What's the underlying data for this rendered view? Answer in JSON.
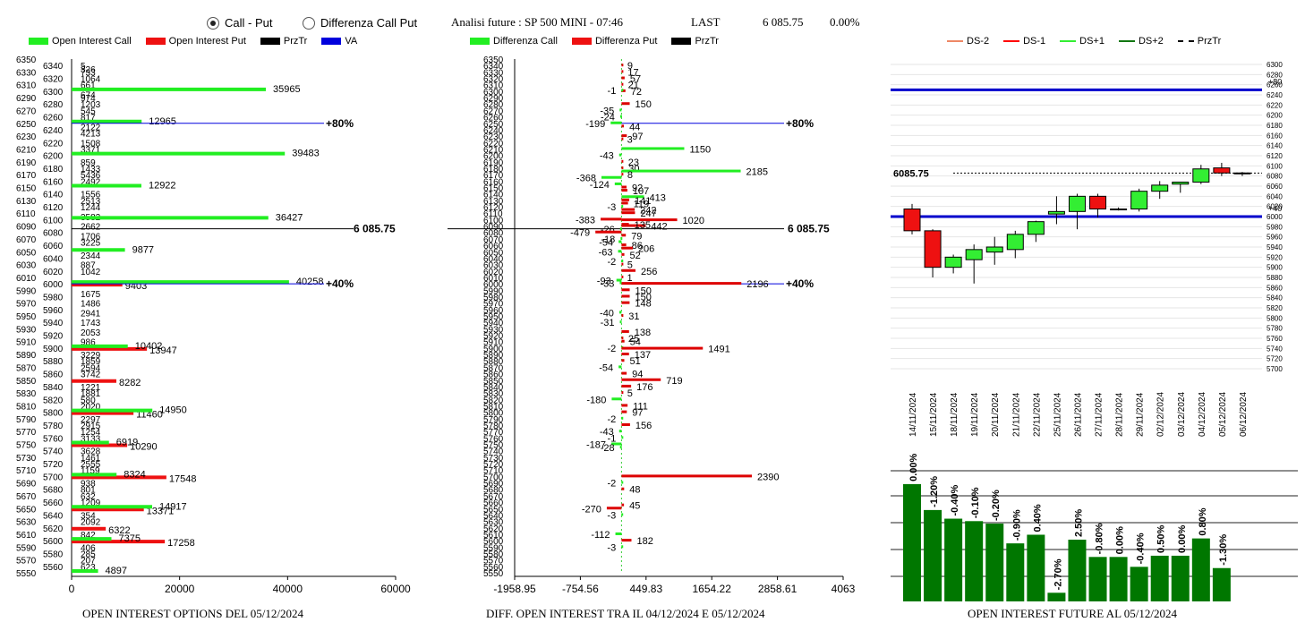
{
  "header": {
    "radio_call_put": "Call - Put",
    "radio_diff": "Differenza Call Put",
    "title": "Analisi future : SP 500 MINI - 07:46",
    "last_label": "LAST",
    "last_value": "6 085.75",
    "last_change": "0.00%"
  },
  "colors": {
    "call": "#22ee22",
    "put": "#ee1111",
    "va": "#0000dd",
    "ds1": "#ff0000",
    "ds2": "#117711",
    "ds_1": "#33ee33",
    "ds_2": "#ee8866",
    "pos_bar": "#33ee33",
    "neg_bar": "#dd0000",
    "vol_bar": "#007700"
  },
  "legend1": [
    {
      "label": "Open Interest Call",
      "color": "#22ee22"
    },
    {
      "label": "Open Interest Put",
      "color": "#ee1111"
    },
    {
      "label": "PrzTr",
      "color": "#000000"
    },
    {
      "label": "VA",
      "color": "#0000dd"
    }
  ],
  "legend2": [
    {
      "label": "Differenza Call",
      "color": "#22ee22"
    },
    {
      "label": "Differenza Put",
      "color": "#ee1111"
    },
    {
      "label": "PrzTr",
      "color": "#000000"
    }
  ],
  "legend3": [
    {
      "label": "DS-2",
      "color": "#ee8866",
      "style": "solid"
    },
    {
      "label": "DS-1",
      "color": "#ff0000",
      "style": "solid"
    },
    {
      "label": "DS+1",
      "color": "#33ee33",
      "style": "solid"
    },
    {
      "label": "DS+2",
      "color": "#117711",
      "style": "solid"
    },
    {
      "label": "PrzTr",
      "color": "#000000",
      "style": "dashed"
    }
  ],
  "chart_data": [
    {
      "type": "bar",
      "orientation": "horizontal",
      "footer": "OPEN INTEREST OPTIONS DEL 05/12/2024",
      "price_label": "6 085.75",
      "price_level": 6085.75,
      "va_lines": [
        {
          "level": 6250,
          "label": "+80%",
          "value_label": "12965"
        },
        {
          "level": 6000,
          "label": "+40%",
          "value_label": "40258"
        }
      ],
      "xlim": [
        0,
        60000
      ],
      "xticks": [
        "0",
        "20000",
        "40000",
        "60000"
      ],
      "strike_ticks": [
        "6350",
        "6330",
        "6310",
        "6290",
        "6270",
        "6250",
        "6230",
        "6210",
        "6190",
        "6170",
        "6150",
        "6130",
        "6110",
        "6090",
        "6070",
        "6050",
        "6030",
        "6010",
        "5990",
        "5970",
        "5950",
        "5930",
        "5910",
        "5890",
        "5870",
        "5850",
        "5830",
        "5810",
        "5790",
        "5770",
        "5750",
        "5730",
        "5710",
        "5690",
        "5670",
        "5650",
        "5630",
        "5610",
        "5590",
        "5570",
        "5550"
      ],
      "strike_ticks_offset": [
        "6340",
        "6320",
        "6300",
        "6280",
        "6260",
        "6240",
        "6220",
        "6200",
        "6180",
        "6160",
        "6140",
        "6120",
        "6100",
        "6080",
        "6060",
        "6040",
        "6020",
        "6000",
        "5980",
        "5960",
        "5940",
        "5920",
        "5900",
        "5880",
        "5860",
        "5840",
        "5820",
        "5800",
        "5780",
        "5760",
        "5740",
        "5720",
        "5700",
        "5680",
        "5660",
        "5640",
        "5620",
        "5600",
        "5580",
        "5560"
      ],
      "call_bars": [
        {
          "strike": 6300,
          "value": 35965
        },
        {
          "strike": 6250,
          "value": 12965
        },
        {
          "strike": 6200,
          "value": 39483
        },
        {
          "strike": 6150,
          "value": 12922
        },
        {
          "strike": 6100,
          "value": 36427
        },
        {
          "strike": 6050,
          "value": 9877
        },
        {
          "strike": 6000,
          "value": 40258
        },
        {
          "strike": 5900,
          "value": 10402
        },
        {
          "strike": 5800,
          "value": 14950
        },
        {
          "strike": 5750,
          "value": 6919
        },
        {
          "strike": 5700,
          "value": 8324
        },
        {
          "strike": 5650,
          "value": 14917
        },
        {
          "strike": 5600,
          "value": 7375
        },
        {
          "strike": 5550,
          "value": 4897
        }
      ],
      "put_bars": [
        {
          "strike": 6000,
          "value": 9403
        },
        {
          "strike": 5900,
          "value": 13947
        },
        {
          "strike": 5850,
          "value": 8282
        },
        {
          "strike": 5800,
          "value": 11460
        },
        {
          "strike": 5750,
          "value": 10290
        },
        {
          "strike": 5700,
          "value": 17548
        },
        {
          "strike": 5650,
          "value": 13371
        },
        {
          "strike": 5620,
          "value": 6322
        },
        {
          "strike": 5600,
          "value": 17258
        }
      ],
      "small_labels": [
        {
          "strike": 6340,
          "value": "5"
        },
        {
          "strike": 6335,
          "value": "326"
        },
        {
          "strike": 6330,
          "value": "733"
        },
        {
          "strike": 6320,
          "value": "1064"
        },
        {
          "strike": 6310,
          "value": "661"
        },
        {
          "strike": 6295,
          "value": "674"
        },
        {
          "strike": 6290,
          "value": "974"
        },
        {
          "strike": 6280,
          "value": "1203"
        },
        {
          "strike": 6270,
          "value": "545"
        },
        {
          "strike": 6260,
          "value": "817"
        },
        {
          "strike": 6245,
          "value": "2122"
        },
        {
          "strike": 6235,
          "value": "4213"
        },
        {
          "strike": 6220,
          "value": "1508"
        },
        {
          "strike": 6210,
          "value": "3371"
        },
        {
          "strike": 6190,
          "value": "859"
        },
        {
          "strike": 6180,
          "value": "1433"
        },
        {
          "strike": 6170,
          "value": "5436"
        },
        {
          "strike": 6160,
          "value": "2492"
        },
        {
          "strike": 6140,
          "value": "1556"
        },
        {
          "strike": 6130,
          "value": "2513"
        },
        {
          "strike": 6120,
          "value": "1244"
        },
        {
          "strike": 6105,
          "value": "3582"
        },
        {
          "strike": 6090,
          "value": "2662"
        },
        {
          "strike": 6075,
          "value": "1706"
        },
        {
          "strike": 6065,
          "value": "3225"
        },
        {
          "strike": 6045,
          "value": "2344"
        },
        {
          "strike": 6030,
          "value": "887"
        },
        {
          "strike": 6020,
          "value": "1042"
        },
        {
          "strike": 5985,
          "value": "1675"
        },
        {
          "strike": 5970,
          "value": "1486"
        },
        {
          "strike": 5955,
          "value": "2941"
        },
        {
          "strike": 5940,
          "value": "1743"
        },
        {
          "strike": 5925,
          "value": "2053"
        },
        {
          "strike": 5910,
          "value": "986"
        },
        {
          "strike": 5890,
          "value": "3229"
        },
        {
          "strike": 5880,
          "value": "1859"
        },
        {
          "strike": 5870,
          "value": "2594"
        },
        {
          "strike": 5860,
          "value": "3742"
        },
        {
          "strike": 5840,
          "value": "1221"
        },
        {
          "strike": 5830,
          "value": "1881"
        },
        {
          "strike": 5820,
          "value": "580"
        },
        {
          "strike": 5810,
          "value": "2020"
        },
        {
          "strike": 5790,
          "value": "2297"
        },
        {
          "strike": 5780,
          "value": "2915"
        },
        {
          "strike": 5770,
          "value": "1254"
        },
        {
          "strike": 5760,
          "value": "3133"
        },
        {
          "strike": 5740,
          "value": "3628"
        },
        {
          "strike": 5730,
          "value": "1461"
        },
        {
          "strike": 5720,
          "value": "2555"
        },
        {
          "strike": 5710,
          "value": "1159"
        },
        {
          "strike": 5690,
          "value": "938"
        },
        {
          "strike": 5680,
          "value": "801"
        },
        {
          "strike": 5670,
          "value": "632"
        },
        {
          "strike": 5660,
          "value": "1209"
        },
        {
          "strike": 5640,
          "value": "354"
        },
        {
          "strike": 5630,
          "value": "2092"
        },
        {
          "strike": 5610,
          "value": "842"
        },
        {
          "strike": 5590,
          "value": "406"
        },
        {
          "strike": 5580,
          "value": "285"
        },
        {
          "strike": 5570,
          "value": "207"
        },
        {
          "strike": 5560,
          "value": "623"
        }
      ]
    },
    {
      "type": "bar",
      "orientation": "horizontal",
      "footer": "DIFF. OPEN INTEREST TRA IL 04/12/2024 E 05/12/2024",
      "price_label": "6 085.75",
      "price_level": 6085.75,
      "va_lines": [
        {
          "level": 6250,
          "label": "+80%"
        },
        {
          "level": 6000,
          "label": "+40%"
        }
      ],
      "xlim": [
        -1958.95,
        4063
      ],
      "xticks": [
        "-1958.95",
        "-754.56",
        "449.83",
        "1654.22",
        "2858.61",
        "4063"
      ],
      "diff_bars": [
        {
          "strike": 6340,
          "value": 9
        },
        {
          "strike": 6330,
          "value": 17
        },
        {
          "strike": 6320,
          "value": 57
        },
        {
          "strike": 6310,
          "value": 21
        },
        {
          "strike": 6300,
          "value": 72
        },
        {
          "strike": 6301,
          "value": -1
        },
        {
          "strike": 6280,
          "value": 150
        },
        {
          "strike": 6270,
          "value": -35
        },
        {
          "strike": 6260,
          "value": -24
        },
        {
          "strike": 6250,
          "value": -199
        },
        {
          "strike": 6245,
          "value": 44
        },
        {
          "strike": 6230,
          "value": 97
        },
        {
          "strike": 6225,
          "value": 3
        },
        {
          "strike": 6210,
          "value": 1150
        },
        {
          "strike": 6200,
          "value": -43
        },
        {
          "strike": 6190,
          "value": 23
        },
        {
          "strike": 6180,
          "value": 30
        },
        {
          "strike": 6175,
          "value": 2185
        },
        {
          "strike": 6170,
          "value": 8
        },
        {
          "strike": 6165,
          "value": -368
        },
        {
          "strike": 6155,
          "value": -124
        },
        {
          "strike": 6150,
          "value": 92
        },
        {
          "strike": 6145,
          "value": 107
        },
        {
          "strike": 6135,
          "value": 413
        },
        {
          "strike": 6130,
          "value": 141
        },
        {
          "strike": 6125,
          "value": 119
        },
        {
          "strike": 6120,
          "value": -3
        },
        {
          "strike": 6115,
          "value": 242
        },
        {
          "strike": 6110,
          "value": 247
        },
        {
          "strike": 6100,
          "value": -383
        },
        {
          "strike": 6099,
          "value": 1020
        },
        {
          "strike": 6090,
          "value": 442
        },
        {
          "strike": 6092,
          "value": 135
        },
        {
          "strike": 6085,
          "value": -26
        },
        {
          "strike": 6080,
          "value": -479
        },
        {
          "strike": 6075,
          "value": 79
        },
        {
          "strike": 6070,
          "value": -18
        },
        {
          "strike": 6065,
          "value": -54
        },
        {
          "strike": 6060,
          "value": 86
        },
        {
          "strike": 6055,
          "value": 206
        },
        {
          "strike": 6050,
          "value": -63
        },
        {
          "strike": 6045,
          "value": 52
        },
        {
          "strike": 6035,
          "value": -2
        },
        {
          "strike": 6030,
          "value": 5
        },
        {
          "strike": 6020,
          "value": 256
        },
        {
          "strike": 6010,
          "value": 1
        },
        {
          "strike": 6005,
          "value": -93
        },
        {
          "strike": 6000,
          "value": 2196
        },
        {
          "strike": 6001,
          "value": -33
        },
        {
          "strike": 5990,
          "value": 150
        },
        {
          "strike": 5980,
          "value": 150
        },
        {
          "strike": 5970,
          "value": 148
        },
        {
          "strike": 5955,
          "value": -40
        },
        {
          "strike": 5950,
          "value": 31
        },
        {
          "strike": 5940,
          "value": -31
        },
        {
          "strike": 5925,
          "value": 138
        },
        {
          "strike": 5915,
          "value": 25
        },
        {
          "strike": 5910,
          "value": 54
        },
        {
          "strike": 5900,
          "value": -2
        },
        {
          "strike": 5899,
          "value": 1491
        },
        {
          "strike": 5890,
          "value": 137
        },
        {
          "strike": 5880,
          "value": 51
        },
        {
          "strike": 5870,
          "value": -54
        },
        {
          "strike": 5860,
          "value": 94
        },
        {
          "strike": 5850,
          "value": 719
        },
        {
          "strike": 5840,
          "value": 176
        },
        {
          "strike": 5830,
          "value": 5
        },
        {
          "strike": 5820,
          "value": -180
        },
        {
          "strike": 5810,
          "value": 111
        },
        {
          "strike": 5800,
          "value": 97
        },
        {
          "strike": 5790,
          "value": -2
        },
        {
          "strike": 5780,
          "value": 156
        },
        {
          "strike": 5770,
          "value": -43
        },
        {
          "strike": 5760,
          "value": -1
        },
        {
          "strike": 5750,
          "value": -187
        },
        {
          "strike": 5745,
          "value": -28
        },
        {
          "strike": 5700,
          "value": 2390
        },
        {
          "strike": 5690,
          "value": -2
        },
        {
          "strike": 5680,
          "value": 48
        },
        {
          "strike": 5655,
          "value": 45
        },
        {
          "strike": 5650,
          "value": -270
        },
        {
          "strike": 5640,
          "value": -3
        },
        {
          "strike": 5610,
          "value": -112
        },
        {
          "strike": 5600,
          "value": 182
        },
        {
          "strike": 5590,
          "value": -3
        }
      ]
    },
    {
      "type": "candlestick",
      "footer": "OPEN INTEREST FUTURE AL 05/12/2024",
      "ylim": [
        5700,
        6300
      ],
      "yticks": [
        "6300",
        "6280",
        "6260",
        "6240",
        "6220",
        "6200",
        "6180",
        "6160",
        "6140",
        "6120",
        "6100",
        "6080",
        "6060",
        "6040",
        "6020",
        "6000",
        "5980",
        "5960",
        "5940",
        "5920",
        "5900",
        "5880",
        "5860",
        "5840",
        "5820",
        "5800",
        "5780",
        "5760",
        "5740",
        "5720",
        "5700"
      ],
      "price_label": "6085.75",
      "price_level": 6085.75,
      "blue_lines": [
        {
          "level": 6250,
          "label": "+80"
        },
        {
          "level": 6000,
          "label": "+40"
        }
      ],
      "dates": [
        "14/11/2024",
        "15/11/2024",
        "18/11/2024",
        "19/11/2024",
        "20/11/2024",
        "21/11/2024",
        "22/11/2024",
        "25/11/2024",
        "26/11/2024",
        "27/11/2024",
        "28/11/2024",
        "29/11/2024",
        "02/12/2024",
        "03/12/2024",
        "04/12/2024",
        "05/12/2024",
        "06/12/2024"
      ],
      "candles": [
        {
          "o": 6015,
          "h": 6025,
          "l": 5965,
          "c": 5972
        },
        {
          "o": 5972,
          "h": 5975,
          "l": 5880,
          "c": 5900
        },
        {
          "o": 5900,
          "h": 5925,
          "l": 5888,
          "c": 5920
        },
        {
          "o": 5915,
          "h": 5945,
          "l": 5868,
          "c": 5935
        },
        {
          "o": 5930,
          "h": 5960,
          "l": 5905,
          "c": 5940
        },
        {
          "o": 5935,
          "h": 5972,
          "l": 5918,
          "c": 5965
        },
        {
          "o": 5965,
          "h": 5992,
          "l": 5950,
          "c": 5990
        },
        {
          "o": 6005,
          "h": 6040,
          "l": 5985,
          "c": 6010
        },
        {
          "o": 6010,
          "h": 6045,
          "l": 5975,
          "c": 6040
        },
        {
          "o": 6040,
          "h": 6045,
          "l": 5998,
          "c": 6015
        },
        {
          "o": 6015,
          "h": 6018,
          "l": 6012,
          "c": 6015
        },
        {
          "o": 6015,
          "h": 6055,
          "l": 6010,
          "c": 6050
        },
        {
          "o": 6050,
          "h": 6070,
          "l": 6035,
          "c": 6062
        },
        {
          "o": 6064,
          "h": 6068,
          "l": 6047,
          "c": 6068
        },
        {
          "o": 6068,
          "h": 6102,
          "l": 6064,
          "c": 6094
        },
        {
          "o": 6096,
          "h": 6106,
          "l": 6080,
          "c": 6086
        },
        {
          "o": 6086,
          "h": 6088,
          "l": 6080,
          "c": 6086
        }
      ],
      "oi_change_pct": [
        "0.00%",
        "-1.20%",
        "-0.40%",
        "-0.10%",
        "-0.20%",
        "-0.90%",
        "0.40%",
        "-2.70%",
        "2.50%",
        "-0.80%",
        "0.00%",
        "-0.40%",
        "0.50%",
        "0.00%",
        "0.80%",
        "-1.30%"
      ],
      "oi_bar_levels": [
        0.95,
        0.74,
        0.67,
        0.65,
        0.63,
        0.47,
        0.54,
        0.07,
        0.5,
        0.36,
        0.36,
        0.28,
        0.37,
        0.37,
        0.51,
        0.27
      ]
    }
  ]
}
